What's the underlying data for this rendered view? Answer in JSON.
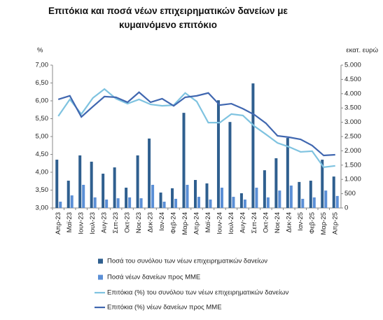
{
  "chart_data": {
    "type": "bar",
    "title": "Επιτόκια και ποσά νέων επιχειρηματικών δανείων με κυμαινόμενο επιτόκιο",
    "y_label": "%",
    "y2_label": "εκατ. ευρώ",
    "categories": [
      "Απρ-23",
      "Μαϊ-23",
      "Ιουν-23",
      "Ιουλ-23",
      "Αυγ-23",
      "Σεπ-23",
      "Οκτ-23",
      "Νοε-23",
      "Δεκ-23",
      "Ιαν-24",
      "Φεβ-24",
      "Μαρ-24",
      "Απρ-24",
      "Μαϊ-24",
      "Ιουν-24",
      "Ιουλ-24",
      "Αυγ-24",
      "Σεπ-24",
      "Οκτ-24",
      "Νοε-24",
      "Δεκ-24",
      "Ιαν-25",
      "Φεβ-25",
      "Μαρ-25",
      "Απρ-25"
    ],
    "ylim": [
      3,
      7
    ],
    "yticks": [
      {
        "value": 3,
        "label": "3,00"
      },
      {
        "value": 3.5,
        "label": "3,50"
      },
      {
        "value": 4,
        "label": "4,00"
      },
      {
        "value": 4.5,
        "label": "4,50"
      },
      {
        "value": 5,
        "label": "5,00"
      },
      {
        "value": 5.5,
        "label": "5,50"
      },
      {
        "value": 6,
        "label": "6,00"
      },
      {
        "value": 6.5,
        "label": "6,50"
      },
      {
        "value": 7,
        "label": "7,00"
      }
    ],
    "y2lim": [
      0,
      5000
    ],
    "y2ticks": [
      0,
      500,
      {
        "value": 1000,
        "label": "1.000"
      },
      {
        "value": 1500,
        "label": "1.500"
      },
      {
        "value": 2000,
        "label": "2.000"
      },
      {
        "value": 2500,
        "label": "2.500"
      },
      {
        "value": 3000,
        "label": "3.000"
      },
      {
        "value": 3500,
        "label": "3.500"
      },
      {
        "value": 4000,
        "label": "4.000"
      },
      {
        "value": 4500,
        "label": "4.500"
      },
      {
        "value": 5000,
        "label": "5.000"
      }
    ],
    "series": [
      {
        "name": "Ποσά του συνόλου των νέων επιχειρηματικών δανείων",
        "type": "bar",
        "axis": "y2",
        "color": "#2f5f8f",
        "values": [
          1690,
          955,
          1840,
          1620,
          1200,
          1420,
          710,
          1840,
          2430,
          540,
          690,
          3330,
          980,
          860,
          3770,
          3010,
          515,
          4360,
          1320,
          1740,
          2450,
          910,
          955,
          1690,
          1100
        ]
      },
      {
        "name": "Ποσά νέων δανείων προς ΜΜΕ",
        "type": "bar",
        "axis": "y2",
        "color": "#5b8fd6",
        "values": [
          220,
          440,
          810,
          370,
          295,
          340,
          370,
          340,
          810,
          220,
          320,
          810,
          390,
          295,
          710,
          390,
          295,
          710,
          370,
          610,
          785,
          320,
          370,
          610,
          420
        ]
      },
      {
        "name": "Επιτόκια (%) του συνόλου των νέων επιχειρηματικών δανείων",
        "type": "line",
        "color": "#7fc3e0",
        "values": [
          5.57,
          6.04,
          5.63,
          6.08,
          6.33,
          6.06,
          5.92,
          6.04,
          5.9,
          5.86,
          5.88,
          6.22,
          5.98,
          5.39,
          5.39,
          5.63,
          5.59,
          5.29,
          5.06,
          4.82,
          4.71,
          4.57,
          4.59,
          4.14,
          4.18
        ]
      },
      {
        "name": "Επιτόκια (%) νέων δανείων προς ΜΜΕ",
        "type": "line",
        "color": "#4067b0",
        "values": [
          6.04,
          6.14,
          5.55,
          5.84,
          6.12,
          6.1,
          5.96,
          6.24,
          5.96,
          6.06,
          5.86,
          6.1,
          6.14,
          6.22,
          5.88,
          5.92,
          5.78,
          5.61,
          5.37,
          5.02,
          4.98,
          4.92,
          4.75,
          4.47,
          4.49
        ]
      }
    ]
  }
}
